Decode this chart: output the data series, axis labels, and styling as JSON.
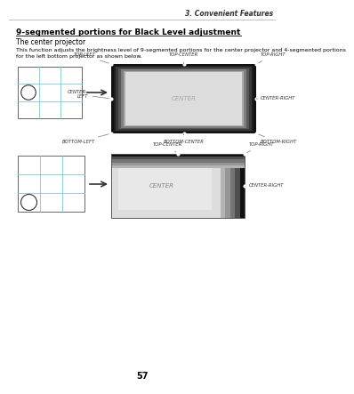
{
  "page_title": "3. Convenient Features",
  "section_title": "9-segmented portions for Black Level adjustment",
  "subtitle": "The center projector",
  "body_text1": "This function adjusts the brightness level of 9-segmented portions for the center projector and 4-segmented portions",
  "body_text2": "for the left bottom projector as shown below.",
  "page_number": "57",
  "bg_color": "#ffffff",
  "grid_color": "#7ec8d8"
}
